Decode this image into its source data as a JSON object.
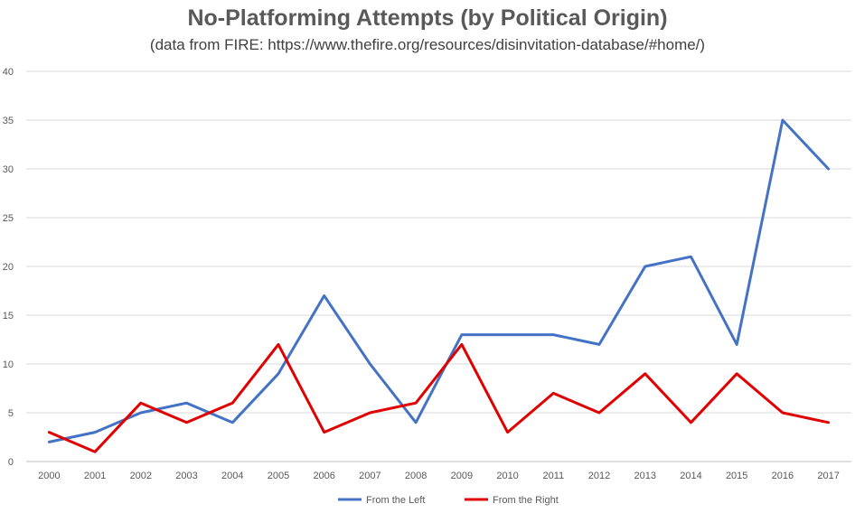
{
  "chart_data": {
    "type": "line",
    "title": "No-Platforming Attempts (by Political Origin)",
    "subtitle": "(data from FIRE: https://www.thefire.org/resources/disinvitation-database/#home/)",
    "x": [
      "2000",
      "2001",
      "2002",
      "2003",
      "2004",
      "2005",
      "2006",
      "2007",
      "2008",
      "2009",
      "2010",
      "2011",
      "2012",
      "2013",
      "2014",
      "2015",
      "2016",
      "2017"
    ],
    "ylim": [
      0,
      40
    ],
    "yticks": [
      0,
      5,
      10,
      15,
      20,
      25,
      30,
      35,
      40
    ],
    "grid": true,
    "legend_position": "bottom",
    "series": [
      {
        "name": "From the Left",
        "color": "#4472C4",
        "values": [
          2,
          3,
          5,
          6,
          4,
          9,
          17,
          10,
          4,
          13,
          13,
          13,
          12,
          20,
          21,
          12,
          35,
          30
        ]
      },
      {
        "name": "From the Right",
        "color": "#E00000",
        "values": [
          3,
          1,
          6,
          4,
          6,
          12,
          3,
          5,
          6,
          12,
          3,
          7,
          5,
          9,
          4,
          9,
          5,
          4
        ]
      }
    ]
  }
}
